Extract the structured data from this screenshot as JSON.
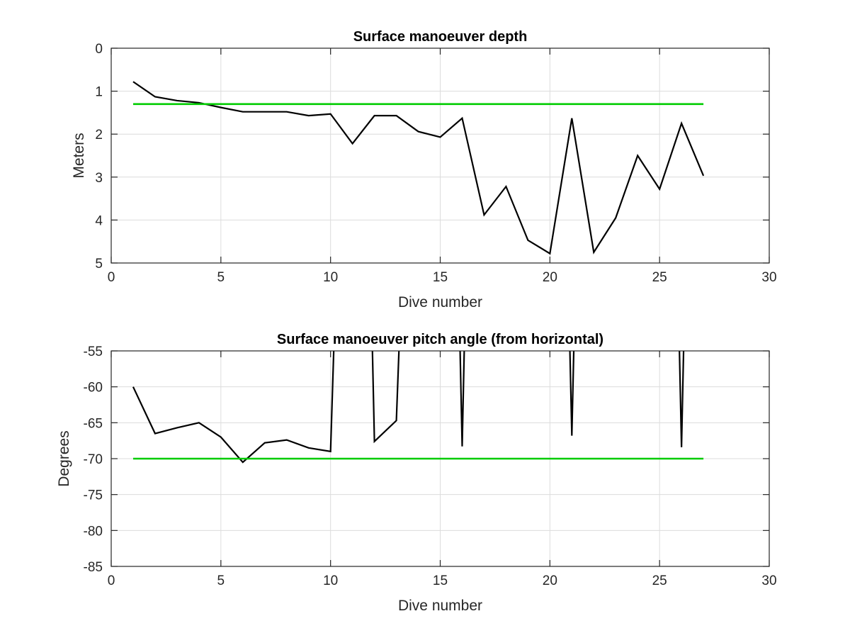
{
  "chart_data": [
    {
      "type": "line",
      "title": "Surface manoeuver depth",
      "xlabel": "Dive number",
      "ylabel": "Meters",
      "xlim": [
        0,
        30
      ],
      "ylim": [
        0,
        5
      ],
      "y_reversed": true,
      "grid": true,
      "xticks": [
        0,
        5,
        10,
        15,
        20,
        25,
        30
      ],
      "yticks": [
        0,
        1,
        2,
        3,
        4,
        5
      ],
      "series": [
        {
          "color": "#000000",
          "x": [
            1,
            2,
            3,
            4,
            5,
            6,
            7,
            8,
            9,
            10,
            11,
            12,
            13,
            14,
            15,
            16,
            17,
            18,
            19,
            20,
            21,
            22,
            23,
            24,
            25,
            26,
            27
          ],
          "values": [
            0.78,
            1.13,
            1.22,
            1.27,
            1.38,
            1.48,
            1.48,
            1.48,
            1.57,
            1.53,
            2.22,
            1.57,
            1.57,
            1.94,
            2.07,
            1.63,
            3.88,
            3.22,
            4.47,
            4.78,
            1.63,
            4.75,
            3.95,
            2.5,
            3.28,
            1.75,
            2.97
          ]
        },
        {
          "color": "#00cc00",
          "x": [
            1,
            27
          ],
          "values": [
            1.3,
            1.3
          ]
        }
      ]
    },
    {
      "type": "line",
      "title": "Surface manoeuver pitch angle (from horizontal)",
      "xlabel": "Dive number",
      "ylabel": "Degrees",
      "xlim": [
        0,
        30
      ],
      "ylim": [
        -85,
        -55
      ],
      "grid": true,
      "xticks": [
        0,
        5,
        10,
        15,
        20,
        25,
        30
      ],
      "yticks": [
        -55,
        -60,
        -65,
        -70,
        -75,
        -80,
        -85
      ],
      "series": [
        {
          "color": "#000000",
          "x": [
            1,
            2,
            3,
            4,
            5,
            6,
            7,
            8,
            9,
            10,
            10.3,
            11.8,
            12,
            13,
            13.3,
            15.8,
            16,
            16.2,
            20.8,
            21,
            21.2,
            25.8,
            26,
            26.2
          ],
          "values": [
            -60,
            -66.5,
            -65.7,
            -65,
            -67,
            -70.5,
            -67.8,
            -67.4,
            -68.5,
            -69,
            -40,
            -40,
            -67.6,
            -64.7,
            -40,
            -40,
            -68.3,
            -40,
            -40,
            -66.8,
            -40,
            -40,
            -68.4,
            -40
          ]
        },
        {
          "color": "#00cc00",
          "x": [
            1,
            27
          ],
          "values": [
            -70,
            -70
          ]
        }
      ]
    }
  ]
}
